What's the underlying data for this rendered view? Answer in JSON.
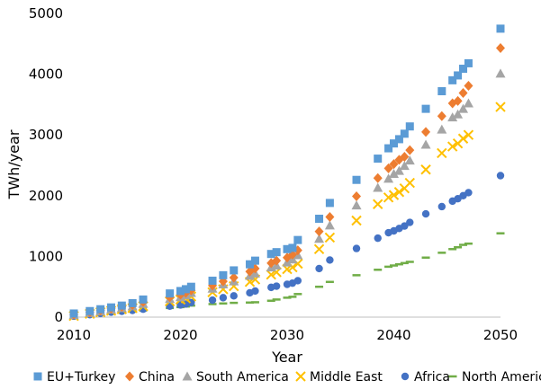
{
  "chart_data": {
    "type": "scatter",
    "title": "",
    "xlabel": "Year",
    "ylabel": "TWh/year",
    "xlim": [
      2010,
      2050
    ],
    "ylim": [
      0,
      5000
    ],
    "x_ticks": [
      "2010",
      "2020",
      "2030",
      "2040",
      "2050"
    ],
    "y_ticks": [
      "0",
      "1000",
      "2000",
      "3000",
      "4000",
      "5000"
    ],
    "grid": false,
    "legend_position": "bottom",
    "series": [
      {
        "name": "EU+Turkey",
        "marker": "square",
        "color": "#5b9bd5",
        "points": [
          [
            2010,
            60
          ],
          [
            2011.5,
            100
          ],
          [
            2012.5,
            130
          ],
          [
            2013.5,
            160
          ],
          [
            2014.5,
            190
          ],
          [
            2015.5,
            230
          ],
          [
            2016.5,
            290
          ],
          [
            2019,
            390
          ],
          [
            2020,
            430
          ],
          [
            2020.5,
            460
          ],
          [
            2021,
            500
          ],
          [
            2023,
            600
          ],
          [
            2024,
            690
          ],
          [
            2025,
            770
          ],
          [
            2026.5,
            870
          ],
          [
            2027,
            930
          ],
          [
            2028.5,
            1040
          ],
          [
            2029,
            1070
          ],
          [
            2030,
            1120
          ],
          [
            2030.5,
            1140
          ],
          [
            2031,
            1270
          ],
          [
            2033,
            1620
          ],
          [
            2034,
            1880
          ],
          [
            2036.5,
            2260
          ],
          [
            2038.5,
            2610
          ],
          [
            2039.5,
            2780
          ],
          [
            2040,
            2860
          ],
          [
            2040.5,
            2930
          ],
          [
            2041,
            3020
          ],
          [
            2041.5,
            3140
          ],
          [
            2043,
            3430
          ],
          [
            2044.5,
            3720
          ],
          [
            2045.5,
            3900
          ],
          [
            2046,
            3980
          ],
          [
            2046.5,
            4090
          ],
          [
            2047,
            4180
          ],
          [
            2050,
            4750
          ]
        ]
      },
      {
        "name": "China",
        "marker": "diamond",
        "color": "#ed7d31",
        "points": [
          [
            2010,
            40
          ],
          [
            2011.5,
            80
          ],
          [
            2012.5,
            110
          ],
          [
            2013.5,
            140
          ],
          [
            2014.5,
            170
          ],
          [
            2015.5,
            200
          ],
          [
            2016.5,
            250
          ],
          [
            2019,
            330
          ],
          [
            2020,
            370
          ],
          [
            2020.5,
            400
          ],
          [
            2021,
            440
          ],
          [
            2023,
            520
          ],
          [
            2024,
            590
          ],
          [
            2025,
            650
          ],
          [
            2026.5,
            750
          ],
          [
            2027,
            800
          ],
          [
            2028.5,
            890
          ],
          [
            2029,
            930
          ],
          [
            2030,
            980
          ],
          [
            2030.5,
            1030
          ],
          [
            2031,
            1100
          ],
          [
            2033,
            1410
          ],
          [
            2034,
            1650
          ],
          [
            2036.5,
            1990
          ],
          [
            2038.5,
            2290
          ],
          [
            2039.5,
            2450
          ],
          [
            2040,
            2520
          ],
          [
            2040.5,
            2590
          ],
          [
            2041,
            2640
          ],
          [
            2041.5,
            2750
          ],
          [
            2043,
            3050
          ],
          [
            2044.5,
            3310
          ],
          [
            2045.5,
            3520
          ],
          [
            2046,
            3560
          ],
          [
            2046.5,
            3690
          ],
          [
            2047,
            3810
          ],
          [
            2050,
            4430
          ]
        ]
      },
      {
        "name": "South America",
        "marker": "triangle",
        "color": "#a5a5a5",
        "points": [
          [
            2010,
            35
          ],
          [
            2011.5,
            70
          ],
          [
            2012.5,
            95
          ],
          [
            2013.5,
            125
          ],
          [
            2014.5,
            150
          ],
          [
            2015.5,
            180
          ],
          [
            2016.5,
            220
          ],
          [
            2019,
            300
          ],
          [
            2020,
            330
          ],
          [
            2020.5,
            360
          ],
          [
            2021,
            400
          ],
          [
            2023,
            470
          ],
          [
            2024,
            540
          ],
          [
            2025,
            590
          ],
          [
            2026.5,
            680
          ],
          [
            2027,
            720
          ],
          [
            2028.5,
            820
          ],
          [
            2029,
            850
          ],
          [
            2030,
            900
          ],
          [
            2030.5,
            950
          ],
          [
            2031,
            1020
          ],
          [
            2033,
            1290
          ],
          [
            2034,
            1510
          ],
          [
            2036.5,
            1840
          ],
          [
            2038.5,
            2130
          ],
          [
            2039.5,
            2280
          ],
          [
            2040,
            2360
          ],
          [
            2040.5,
            2410
          ],
          [
            2041,
            2490
          ],
          [
            2041.5,
            2580
          ],
          [
            2043,
            2840
          ],
          [
            2044.5,
            3090
          ],
          [
            2045.5,
            3290
          ],
          [
            2046,
            3340
          ],
          [
            2046.5,
            3430
          ],
          [
            2047,
            3520
          ],
          [
            2050,
            4010
          ]
        ]
      },
      {
        "name": "Middle East",
        "marker": "x",
        "color": "#ffc000",
        "points": [
          [
            2010,
            20
          ],
          [
            2011.5,
            55
          ],
          [
            2012.5,
            80
          ],
          [
            2013.5,
            105
          ],
          [
            2014.5,
            130
          ],
          [
            2015.5,
            150
          ],
          [
            2016.5,
            180
          ],
          [
            2019,
            260
          ],
          [
            2020,
            290
          ],
          [
            2020.5,
            310
          ],
          [
            2021,
            340
          ],
          [
            2023,
            410
          ],
          [
            2024,
            460
          ],
          [
            2025,
            510
          ],
          [
            2026.5,
            580
          ],
          [
            2027,
            620
          ],
          [
            2028.5,
            700
          ],
          [
            2029,
            740
          ],
          [
            2030,
            790
          ],
          [
            2030.5,
            820
          ],
          [
            2031,
            880
          ],
          [
            2033,
            1120
          ],
          [
            2034,
            1310
          ],
          [
            2036.5,
            1590
          ],
          [
            2038.5,
            1860
          ],
          [
            2039.5,
            1970
          ],
          [
            2040,
            2010
          ],
          [
            2040.5,
            2060
          ],
          [
            2041,
            2120
          ],
          [
            2041.5,
            2210
          ],
          [
            2043,
            2430
          ],
          [
            2044.5,
            2700
          ],
          [
            2045.5,
            2810
          ],
          [
            2046,
            2860
          ],
          [
            2046.5,
            2940
          ],
          [
            2047,
            3000
          ],
          [
            2050,
            3460
          ]
        ]
      },
      {
        "name": "Africa",
        "marker": "circle",
        "color": "#4472c4",
        "points": [
          [
            2010,
            15
          ],
          [
            2011.5,
            40
          ],
          [
            2012.5,
            60
          ],
          [
            2013.5,
            80
          ],
          [
            2014.5,
            95
          ],
          [
            2015.5,
            110
          ],
          [
            2016.5,
            130
          ],
          [
            2019,
            180
          ],
          [
            2020,
            200
          ],
          [
            2020.5,
            215
          ],
          [
            2021,
            240
          ],
          [
            2023,
            280
          ],
          [
            2024,
            320
          ],
          [
            2025,
            350
          ],
          [
            2026.5,
            400
          ],
          [
            2027,
            430
          ],
          [
            2028.5,
            490
          ],
          [
            2029,
            510
          ],
          [
            2030,
            540
          ],
          [
            2030.5,
            560
          ],
          [
            2031,
            600
          ],
          [
            2033,
            800
          ],
          [
            2034,
            940
          ],
          [
            2036.5,
            1130
          ],
          [
            2038.5,
            1300
          ],
          [
            2039.5,
            1390
          ],
          [
            2040,
            1420
          ],
          [
            2040.5,
            1460
          ],
          [
            2041,
            1500
          ],
          [
            2041.5,
            1560
          ],
          [
            2043,
            1700
          ],
          [
            2044.5,
            1820
          ],
          [
            2045.5,
            1910
          ],
          [
            2046,
            1950
          ],
          [
            2046.5,
            2000
          ],
          [
            2047,
            2050
          ],
          [
            2050,
            2330
          ]
        ]
      },
      {
        "name": "North America",
        "marker": "dash",
        "color": "#70ad47",
        "points": [
          [
            2010,
            10
          ],
          [
            2011.5,
            30
          ],
          [
            2012.5,
            50
          ],
          [
            2013.5,
            70
          ],
          [
            2014.5,
            80
          ],
          [
            2015.5,
            95
          ],
          [
            2016.5,
            110
          ],
          [
            2019,
            150
          ],
          [
            2020,
            165
          ],
          [
            2020.5,
            175
          ],
          [
            2021,
            190
          ],
          [
            2023,
            215
          ],
          [
            2024,
            225
          ],
          [
            2025,
            235
          ],
          [
            2026.5,
            240
          ],
          [
            2027,
            245
          ],
          [
            2028.5,
            270
          ],
          [
            2029,
            290
          ],
          [
            2030,
            320
          ],
          [
            2030.5,
            335
          ],
          [
            2031,
            380
          ],
          [
            2033,
            500
          ],
          [
            2034,
            580
          ],
          [
            2036.5,
            690
          ],
          [
            2038.5,
            780
          ],
          [
            2039.5,
            830
          ],
          [
            2040,
            850
          ],
          [
            2040.5,
            870
          ],
          [
            2041,
            890
          ],
          [
            2041.5,
            910
          ],
          [
            2043,
            980
          ],
          [
            2044.5,
            1060
          ],
          [
            2045.5,
            1120
          ],
          [
            2046,
            1150
          ],
          [
            2046.5,
            1190
          ],
          [
            2047,
            1210
          ],
          [
            2050,
            1380
          ]
        ]
      }
    ]
  }
}
